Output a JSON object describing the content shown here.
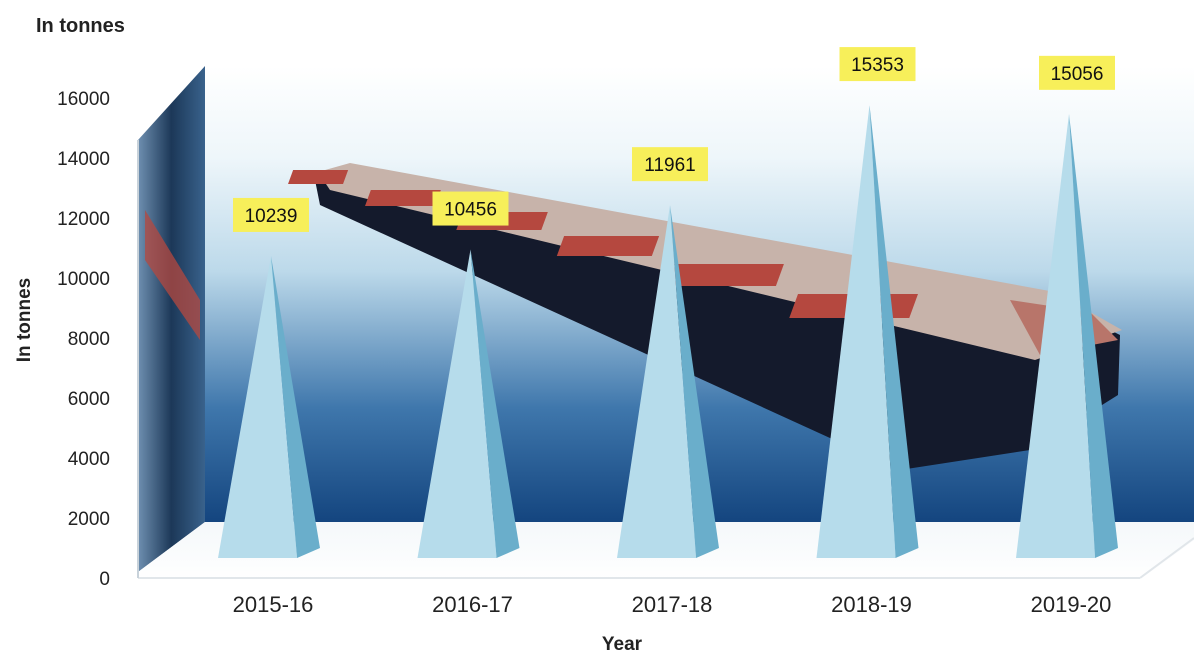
{
  "chart_data": {
    "type": "bar",
    "title": "In tonnes",
    "xlabel": "Year",
    "ylabel": "In tonnes",
    "categories": [
      "2015-16",
      "2016-17",
      "2017-18",
      "2018-19",
      "2019-20"
    ],
    "values": [
      10239,
      10456,
      11961,
      15353,
      15056
    ],
    "ylim": [
      0,
      16000
    ],
    "yticks": [
      "0",
      "2000",
      "4000",
      "6000",
      "8000",
      "10000",
      "12000",
      "14000",
      "16000"
    ],
    "data_labels": [
      "10239",
      "10456",
      "11961",
      "15353",
      "15056"
    ],
    "grid": false,
    "legend": "none",
    "colors": {
      "bar_front": "#b6dceb",
      "bar_side": "#6aaecb",
      "label_bg": "#f7ef5a",
      "sea_deep": "#0f3f7a",
      "sea_light": "#d7ecf6",
      "ship_hull": "#141a2c",
      "ship_deck": "#b5483f"
    }
  }
}
